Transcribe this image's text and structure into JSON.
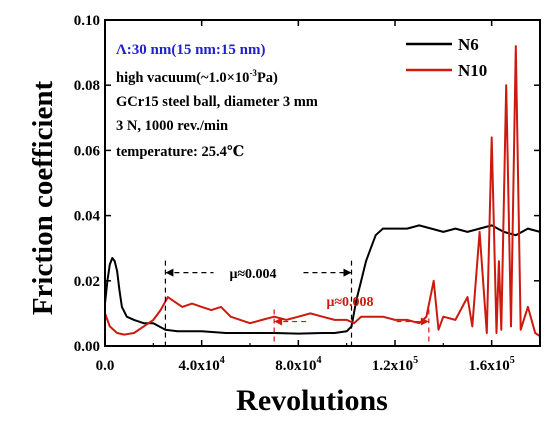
{
  "chart_data": {
    "type": "line",
    "title": "",
    "xlabel": "Revolutions",
    "ylabel": "Friction coefficient",
    "xlim": [
      0,
      180000
    ],
    "ylim": [
      0,
      0.1
    ],
    "x_ticks": [
      {
        "value": 0,
        "label": "0.0"
      },
      {
        "value": 40000,
        "label": "4.0x10",
        "exp": "4"
      },
      {
        "value": 80000,
        "label": "8.0x10",
        "exp": "4"
      },
      {
        "value": 120000,
        "label": "1.2x10",
        "exp": "5"
      },
      {
        "value": 160000,
        "label": "1.6x10",
        "exp": "5"
      }
    ],
    "y_ticks": [
      {
        "value": 0,
        "label": "0.00"
      },
      {
        "value": 0.02,
        "label": "0.02"
      },
      {
        "value": 0.04,
        "label": "0.04"
      },
      {
        "value": 0.06,
        "label": "0.06"
      },
      {
        "value": 0.08,
        "label": "0.08"
      },
      {
        "value": 0.1,
        "label": "0.10"
      }
    ],
    "grid": false,
    "legend_position": "top-right",
    "series": [
      {
        "name": "N6",
        "color": "#000000",
        "x": [
          0,
          1000,
          2000,
          3000,
          4000,
          5000,
          6000,
          7000,
          9000,
          12000,
          16000,
          20000,
          25000,
          30000,
          40000,
          50000,
          60000,
          70000,
          80000,
          90000,
          95000,
          100000,
          102000,
          104000,
          106000,
          108000,
          110000,
          112000,
          115000,
          120000,
          125000,
          130000,
          135000,
          140000,
          145000,
          150000,
          155000,
          160000,
          165000,
          170000,
          175000,
          180000
        ],
        "values": [
          0.013,
          0.02,
          0.025,
          0.027,
          0.026,
          0.023,
          0.017,
          0.012,
          0.009,
          0.008,
          0.007,
          0.007,
          0.005,
          0.0045,
          0.0045,
          0.004,
          0.004,
          0.004,
          0.0038,
          0.004,
          0.004,
          0.0045,
          0.006,
          0.014,
          0.02,
          0.026,
          0.03,
          0.034,
          0.036,
          0.036,
          0.036,
          0.037,
          0.036,
          0.035,
          0.036,
          0.035,
          0.036,
          0.037,
          0.035,
          0.034,
          0.036,
          0.035
        ]
      },
      {
        "name": "N10",
        "color": "#cc1a0f",
        "x": [
          0,
          2000,
          5000,
          8000,
          12000,
          16000,
          20000,
          23000,
          26000,
          28000,
          32000,
          36000,
          40000,
          44000,
          48000,
          52000,
          56000,
          60000,
          65000,
          70000,
          75000,
          80000,
          85000,
          90000,
          95000,
          100000,
          103000,
          106000,
          110000,
          115000,
          120000,
          125000,
          130000,
          133000,
          136000,
          138000,
          140000,
          145000,
          150000,
          152000,
          155000,
          158000,
          160000,
          162000,
          163000,
          164000,
          166000,
          168000,
          170000,
          172000,
          175000,
          178000,
          180000
        ],
        "values": [
          0.01,
          0.006,
          0.004,
          0.0035,
          0.004,
          0.006,
          0.008,
          0.011,
          0.015,
          0.014,
          0.012,
          0.013,
          0.012,
          0.011,
          0.012,
          0.009,
          0.008,
          0.007,
          0.008,
          0.009,
          0.008,
          0.009,
          0.01,
          0.009,
          0.008,
          0.008,
          0.007,
          0.009,
          0.009,
          0.009,
          0.008,
          0.008,
          0.007,
          0.009,
          0.02,
          0.005,
          0.009,
          0.008,
          0.015,
          0.006,
          0.035,
          0.004,
          0.064,
          0.004,
          0.026,
          0.005,
          0.08,
          0.006,
          0.092,
          0.005,
          0.012,
          0.004,
          0.003
        ]
      }
    ],
    "annotations": {
      "structure": "Λ:30 nm(15 nm:15 nm)",
      "cond_line1_pre": "high vacuum(~1.0×10",
      "cond_line1_exp": "-3",
      "cond_line1_post": "Pa)",
      "cond_line2": "GCr15 steel ball, diameter 3 mm",
      "cond_line3": "3 N, 1000 rev./min",
      "cond_line4": "temperature: 25.4℃",
      "mu_black": "μ≈0.004",
      "mu_red": "μ≈0.008"
    },
    "ranges": {
      "mu_black": {
        "x_from": 25000,
        "x_to": 102000,
        "y": 0.0225,
        "y_bottom": 0,
        "color": "#000000"
      },
      "mu_red": {
        "x_from": 70000,
        "x_to": 134000,
        "y": 0.0075,
        "y_bottom": 0,
        "color": "#cc1a0f"
      }
    }
  }
}
